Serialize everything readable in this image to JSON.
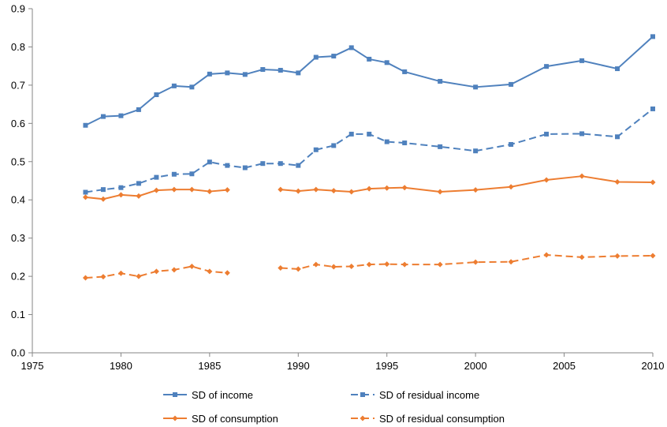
{
  "chart_data": {
    "type": "line",
    "title": "",
    "xlabel": "",
    "ylabel": "",
    "xlim": [
      1975,
      2010
    ],
    "ylim": [
      0,
      0.9
    ],
    "xticks": [
      1975,
      1980,
      1985,
      1990,
      1995,
      2000,
      2005,
      2010
    ],
    "xtick_labels": [
      "1975",
      "1980",
      "1985",
      "1990",
      "1995",
      "2000",
      "2005",
      "2010"
    ],
    "yticks": [
      0,
      0.1,
      0.2,
      0.3,
      0.4,
      0.5,
      0.6,
      0.7,
      0.8,
      0.9
    ],
    "ytick_labels": [
      "0.0",
      "0.1",
      "0.2",
      "0.3",
      "0.4",
      "0.5",
      "0.6",
      "0.7",
      "0.8",
      "0.9"
    ],
    "grid": false,
    "legend_position": "bottom",
    "series": [
      {
        "name": "SD of income",
        "color": "#4F81BD",
        "line_style": "solid",
        "marker": "square",
        "segments": [
          [
            [
              1978,
              0.595
            ],
            [
              1979,
              0.618
            ],
            [
              1980,
              0.62
            ],
            [
              1981,
              0.636
            ],
            [
              1982,
              0.675
            ],
            [
              1983,
              0.698
            ],
            [
              1984,
              0.695
            ],
            [
              1985,
              0.729
            ],
            [
              1986,
              0.732
            ],
            [
              1987,
              0.728
            ],
            [
              1988,
              0.741
            ],
            [
              1989,
              0.739
            ],
            [
              1990,
              0.732
            ],
            [
              1991,
              0.773
            ],
            [
              1992,
              0.776
            ],
            [
              1993,
              0.798
            ],
            [
              1994,
              0.768
            ],
            [
              1995,
              0.759
            ],
            [
              1996,
              0.735
            ],
            [
              1998,
              0.71
            ],
            [
              2000,
              0.695
            ],
            [
              2002,
              0.702
            ],
            [
              2004,
              0.749
            ],
            [
              2006,
              0.764
            ],
            [
              2008,
              0.743
            ],
            [
              2010,
              0.827
            ]
          ]
        ]
      },
      {
        "name": "SD of residual income",
        "color": "#4F81BD",
        "line_style": "dashed",
        "marker": "square",
        "segments": [
          [
            [
              1978,
              0.42
            ],
            [
              1979,
              0.427
            ],
            [
              1980,
              0.432
            ],
            [
              1981,
              0.443
            ],
            [
              1982,
              0.459
            ],
            [
              1983,
              0.467
            ],
            [
              1984,
              0.468
            ],
            [
              1985,
              0.499
            ],
            [
              1986,
              0.49
            ],
            [
              1987,
              0.484
            ],
            [
              1988,
              0.495
            ],
            [
              1989,
              0.495
            ],
            [
              1990,
              0.49
            ],
            [
              1991,
              0.531
            ],
            [
              1992,
              0.542
            ],
            [
              1993,
              0.572
            ],
            [
              1994,
              0.572
            ],
            [
              1995,
              0.552
            ],
            [
              1996,
              0.549
            ],
            [
              1998,
              0.539
            ],
            [
              2000,
              0.528
            ],
            [
              2002,
              0.545
            ],
            [
              2004,
              0.572
            ],
            [
              2006,
              0.573
            ],
            [
              2008,
              0.565
            ],
            [
              2010,
              0.638
            ]
          ]
        ]
      },
      {
        "name": "SD of consumption",
        "color": "#ED7D31",
        "line_style": "solid",
        "marker": "diamond",
        "segments": [
          [
            [
              1978,
              0.407
            ],
            [
              1979,
              0.402
            ],
            [
              1980,
              0.413
            ],
            [
              1981,
              0.41
            ],
            [
              1982,
              0.425
            ],
            [
              1983,
              0.427
            ],
            [
              1984,
              0.427
            ],
            [
              1985,
              0.422
            ],
            [
              1986,
              0.426
            ]
          ],
          [
            [
              1989,
              0.427
            ],
            [
              1990,
              0.423
            ],
            [
              1991,
              0.427
            ],
            [
              1992,
              0.424
            ],
            [
              1993,
              0.421
            ],
            [
              1994,
              0.429
            ],
            [
              1995,
              0.431
            ],
            [
              1996,
              0.432
            ],
            [
              1998,
              0.421
            ],
            [
              2000,
              0.426
            ],
            [
              2002,
              0.434
            ],
            [
              2004,
              0.452
            ],
            [
              2006,
              0.462
            ],
            [
              2008,
              0.447
            ],
            [
              2010,
              0.446
            ]
          ]
        ]
      },
      {
        "name": "SD of residual consumption",
        "color": "#ED7D31",
        "line_style": "dashed",
        "marker": "diamond",
        "segments": [
          [
            [
              1978,
              0.196
            ],
            [
              1979,
              0.199
            ],
            [
              1980,
              0.208
            ],
            [
              1981,
              0.2
            ],
            [
              1982,
              0.213
            ],
            [
              1983,
              0.217
            ],
            [
              1984,
              0.226
            ],
            [
              1985,
              0.213
            ],
            [
              1986,
              0.209
            ]
          ],
          [
            [
              1989,
              0.222
            ],
            [
              1990,
              0.219
            ],
            [
              1991,
              0.231
            ],
            [
              1992,
              0.225
            ],
            [
              1993,
              0.226
            ],
            [
              1994,
              0.231
            ],
            [
              1995,
              0.232
            ],
            [
              1996,
              0.231
            ],
            [
              1998,
              0.231
            ],
            [
              2000,
              0.237
            ],
            [
              2002,
              0.238
            ],
            [
              2004,
              0.256
            ],
            [
              2006,
              0.25
            ],
            [
              2008,
              0.253
            ],
            [
              2010,
              0.254
            ]
          ]
        ]
      }
    ]
  }
}
